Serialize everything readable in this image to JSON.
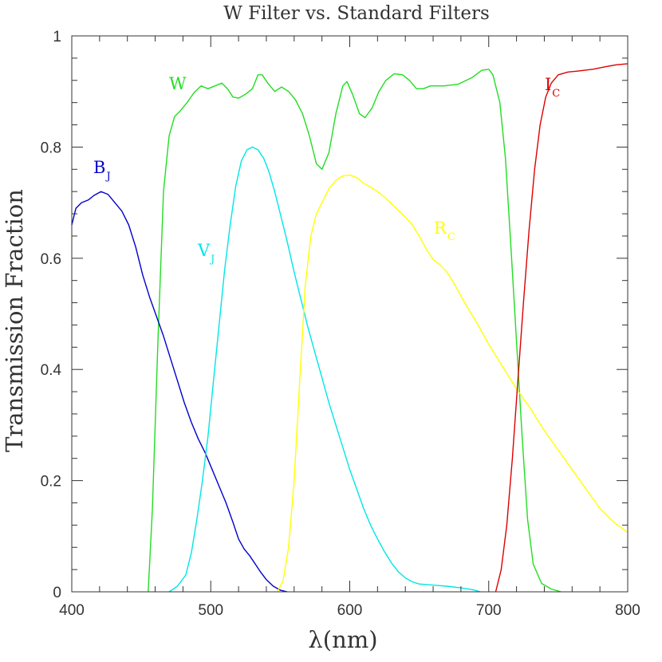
{
  "chart_data": {
    "type": "line",
    "title": "W Filter vs. Standard Filters",
    "xlabel": "λ(nm)",
    "ylabel": "Transmission Fraction",
    "xlim": [
      400,
      800
    ],
    "ylim": [
      0,
      1
    ],
    "xticks": [
      "400",
      "500",
      "600",
      "700",
      "800"
    ],
    "yticks": [
      "0",
      "0.2",
      "0.4",
      "0.6",
      "0.8",
      "1"
    ],
    "grid": false,
    "series": [
      {
        "name": "W",
        "label_main": "W",
        "label_sub": "",
        "color": "#22dd22",
        "points": [
          [
            455,
            0
          ],
          [
            458,
            0.15
          ],
          [
            462,
            0.45
          ],
          [
            466,
            0.72
          ],
          [
            470,
            0.82
          ],
          [
            474,
            0.855
          ],
          [
            478,
            0.865
          ],
          [
            483,
            0.88
          ],
          [
            488,
            0.898
          ],
          [
            493,
            0.91
          ],
          [
            498,
            0.905
          ],
          [
            503,
            0.91
          ],
          [
            508,
            0.915
          ],
          [
            512,
            0.905
          ],
          [
            516,
            0.89
          ],
          [
            520,
            0.888
          ],
          [
            525,
            0.895
          ],
          [
            530,
            0.905
          ],
          [
            534,
            0.93
          ],
          [
            537,
            0.93
          ],
          [
            541,
            0.915
          ],
          [
            546,
            0.9
          ],
          [
            551,
            0.908
          ],
          [
            556,
            0.9
          ],
          [
            561,
            0.885
          ],
          [
            566,
            0.86
          ],
          [
            571,
            0.82
          ],
          [
            576,
            0.77
          ],
          [
            580,
            0.76
          ],
          [
            585,
            0.79
          ],
          [
            590,
            0.86
          ],
          [
            595,
            0.91
          ],
          [
            598,
            0.918
          ],
          [
            602,
            0.895
          ],
          [
            607,
            0.86
          ],
          [
            611,
            0.853
          ],
          [
            616,
            0.87
          ],
          [
            621,
            0.9
          ],
          [
            626,
            0.92
          ],
          [
            632,
            0.932
          ],
          [
            638,
            0.93
          ],
          [
            643,
            0.92
          ],
          [
            648,
            0.905
          ],
          [
            653,
            0.905
          ],
          [
            658,
            0.91
          ],
          [
            668,
            0.91
          ],
          [
            678,
            0.913
          ],
          [
            688,
            0.925
          ],
          [
            695,
            0.938
          ],
          [
            700,
            0.94
          ],
          [
            703,
            0.93
          ],
          [
            708,
            0.88
          ],
          [
            712,
            0.78
          ],
          [
            716,
            0.62
          ],
          [
            720,
            0.45
          ],
          [
            724,
            0.28
          ],
          [
            728,
            0.13
          ],
          [
            732,
            0.05
          ],
          [
            738,
            0.015
          ],
          [
            745,
            0.005
          ],
          [
            752,
            0
          ]
        ]
      },
      {
        "name": "B_J",
        "label_main": "B",
        "label_sub": "J",
        "color": "#0000cc",
        "points": [
          [
            400,
            0.66
          ],
          [
            403,
            0.69
          ],
          [
            407,
            0.7
          ],
          [
            412,
            0.705
          ],
          [
            416,
            0.713
          ],
          [
            421,
            0.72
          ],
          [
            426,
            0.715
          ],
          [
            431,
            0.7
          ],
          [
            436,
            0.685
          ],
          [
            441,
            0.66
          ],
          [
            446,
            0.62
          ],
          [
            451,
            0.57
          ],
          [
            456,
            0.53
          ],
          [
            461,
            0.495
          ],
          [
            466,
            0.46
          ],
          [
            471,
            0.42
          ],
          [
            476,
            0.38
          ],
          [
            481,
            0.34
          ],
          [
            486,
            0.305
          ],
          [
            491,
            0.275
          ],
          [
            496,
            0.25
          ],
          [
            501,
            0.22
          ],
          [
            506,
            0.19
          ],
          [
            511,
            0.16
          ],
          [
            516,
            0.125
          ],
          [
            520,
            0.095
          ],
          [
            524,
            0.077
          ],
          [
            528,
            0.065
          ],
          [
            532,
            0.05
          ],
          [
            536,
            0.035
          ],
          [
            540,
            0.022
          ],
          [
            545,
            0.01
          ],
          [
            550,
            0.003
          ],
          [
            555,
            0
          ]
        ]
      },
      {
        "name": "V_J",
        "label_main": "V",
        "label_sub": "J",
        "color": "#00e6e6",
        "points": [
          [
            470,
            0
          ],
          [
            476,
            0.01
          ],
          [
            482,
            0.03
          ],
          [
            486,
            0.07
          ],
          [
            490,
            0.13
          ],
          [
            494,
            0.2
          ],
          [
            498,
            0.28
          ],
          [
            502,
            0.38
          ],
          [
            506,
            0.48
          ],
          [
            510,
            0.58
          ],
          [
            514,
            0.66
          ],
          [
            518,
            0.73
          ],
          [
            522,
            0.775
          ],
          [
            526,
            0.795
          ],
          [
            530,
            0.8
          ],
          [
            534,
            0.795
          ],
          [
            538,
            0.78
          ],
          [
            542,
            0.755
          ],
          [
            546,
            0.72
          ],
          [
            550,
            0.68
          ],
          [
            555,
            0.63
          ],
          [
            560,
            0.575
          ],
          [
            565,
            0.525
          ],
          [
            570,
            0.475
          ],
          [
            575,
            0.43
          ],
          [
            580,
            0.385
          ],
          [
            585,
            0.34
          ],
          [
            590,
            0.3
          ],
          [
            595,
            0.26
          ],
          [
            600,
            0.22
          ],
          [
            605,
            0.185
          ],
          [
            610,
            0.15
          ],
          [
            615,
            0.12
          ],
          [
            620,
            0.095
          ],
          [
            625,
            0.072
          ],
          [
            630,
            0.052
          ],
          [
            635,
            0.036
          ],
          [
            640,
            0.025
          ],
          [
            645,
            0.018
          ],
          [
            650,
            0.014
          ],
          [
            660,
            0.012
          ],
          [
            670,
            0.01
          ],
          [
            680,
            0.007
          ],
          [
            688,
            0.004
          ],
          [
            694,
            0
          ]
        ]
      },
      {
        "name": "R_C",
        "label_main": "R",
        "label_sub": "C",
        "color": "#ffff00",
        "points": [
          [
            548,
            0
          ],
          [
            552,
            0.02
          ],
          [
            556,
            0.08
          ],
          [
            560,
            0.2
          ],
          [
            564,
            0.38
          ],
          [
            568,
            0.55
          ],
          [
            572,
            0.64
          ],
          [
            576,
            0.68
          ],
          [
            580,
            0.7
          ],
          [
            585,
            0.725
          ],
          [
            590,
            0.74
          ],
          [
            595,
            0.748
          ],
          [
            600,
            0.75
          ],
          [
            605,
            0.745
          ],
          [
            610,
            0.735
          ],
          [
            615,
            0.728
          ],
          [
            620,
            0.72
          ],
          [
            625,
            0.71
          ],
          [
            630,
            0.698
          ],
          [
            635,
            0.686
          ],
          [
            640,
            0.674
          ],
          [
            645,
            0.66
          ],
          [
            650,
            0.64
          ],
          [
            655,
            0.617
          ],
          [
            660,
            0.598
          ],
          [
            665,
            0.588
          ],
          [
            670,
            0.575
          ],
          [
            675,
            0.555
          ],
          [
            680,
            0.532
          ],
          [
            685,
            0.51
          ],
          [
            690,
            0.49
          ],
          [
            695,
            0.468
          ],
          [
            700,
            0.445
          ],
          [
            710,
            0.405
          ],
          [
            720,
            0.365
          ],
          [
            730,
            0.33
          ],
          [
            740,
            0.29
          ],
          [
            750,
            0.255
          ],
          [
            760,
            0.22
          ],
          [
            770,
            0.185
          ],
          [
            780,
            0.15
          ],
          [
            790,
            0.125
          ],
          [
            800,
            0.107
          ]
        ]
      },
      {
        "name": "I_C",
        "label_main": "I",
        "label_sub": "C",
        "color": "#dd0000",
        "points": [
          [
            705,
            0
          ],
          [
            709,
            0.04
          ],
          [
            713,
            0.12
          ],
          [
            717,
            0.24
          ],
          [
            721,
            0.38
          ],
          [
            725,
            0.52
          ],
          [
            729,
            0.65
          ],
          [
            733,
            0.76
          ],
          [
            737,
            0.84
          ],
          [
            741,
            0.89
          ],
          [
            745,
            0.915
          ],
          [
            750,
            0.93
          ],
          [
            757,
            0.935
          ],
          [
            765,
            0.937
          ],
          [
            775,
            0.94
          ],
          [
            785,
            0.945
          ],
          [
            792,
            0.948
          ],
          [
            800,
            0.95
          ]
        ]
      }
    ]
  }
}
